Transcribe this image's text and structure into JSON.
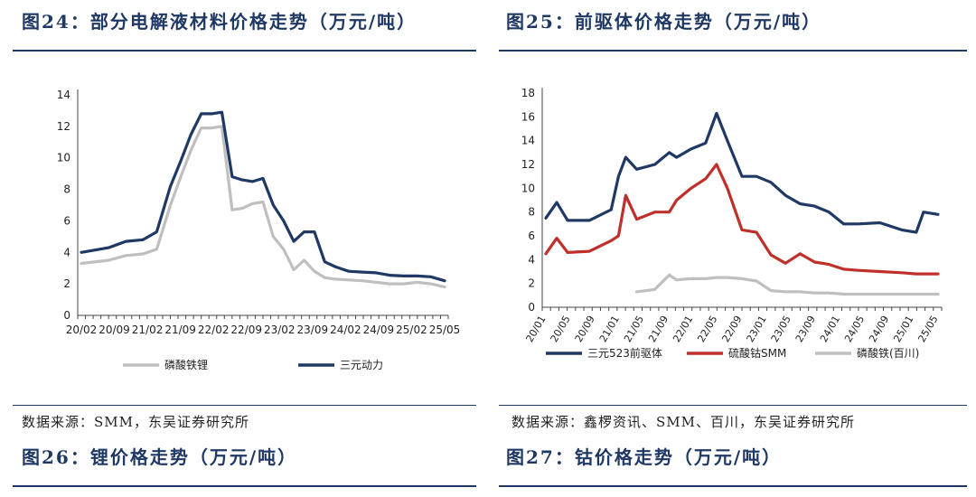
{
  "left_top": {
    "title": "图24：部分电解液材料价格走势（万元/吨）",
    "source": "数据来源：SMM，东吴证券研究所"
  },
  "right_top": {
    "title": "图25：前驱体价格走势（万元/吨）",
    "source": "数据来源：鑫椤资讯、SMM、百川，东吴证券研究所"
  },
  "left_bottom": {
    "title": "图26：锂价格走势（万元/吨）"
  },
  "right_bottom": {
    "title": "图27：钴价格走势（万元/吨）"
  },
  "colors": {
    "navy": "#1f3864",
    "gray": "#bfbfbf",
    "red": "#c0302b",
    "blue": "#2f4f80"
  },
  "chart_data": [
    {
      "type": "line",
      "title": "图24：部分电解液材料价格走势（万元/吨）",
      "ylim": [
        0,
        14
      ],
      "yticks": [
        0,
        2,
        4,
        6,
        8,
        10,
        12,
        14
      ],
      "x_tick_labels": [
        "20/02",
        "20/09",
        "21/02",
        "21/09",
        "22/02",
        "22/09",
        "23/02",
        "23/09",
        "24/02",
        "24/09",
        "25/02",
        "25/05"
      ],
      "x": [
        2020.1,
        2020.5,
        2020.75,
        2021.0,
        2021.2,
        2021.4,
        2021.55,
        2021.7,
        2021.85,
        2022.0,
        2022.15,
        2022.3,
        2022.45,
        2022.6,
        2022.75,
        2022.9,
        2023.05,
        2023.2,
        2023.35,
        2023.5,
        2023.65,
        2023.8,
        2024.0,
        2024.2,
        2024.4,
        2024.6,
        2024.8,
        2025.0,
        2025.2,
        2025.4
      ],
      "series": [
        {
          "name": "磷酸铁锂",
          "color": "#bfbfbf",
          "values": [
            3.3,
            3.5,
            3.8,
            3.9,
            4.2,
            7.0,
            8.8,
            10.5,
            11.9,
            11.9,
            12.0,
            6.7,
            6.8,
            7.1,
            7.2,
            5.0,
            4.2,
            2.9,
            3.5,
            2.8,
            2.4,
            2.3,
            2.25,
            2.2,
            2.1,
            2.0,
            2.0,
            2.1,
            2.0,
            1.8
          ]
        },
        {
          "name": "三元动力",
          "color": "#1f3864",
          "values": [
            4.0,
            4.3,
            4.7,
            4.8,
            5.3,
            8.2,
            9.8,
            11.5,
            12.8,
            12.8,
            12.9,
            8.8,
            8.6,
            8.5,
            8.7,
            7.0,
            6.0,
            4.7,
            5.3,
            5.3,
            3.4,
            3.1,
            2.8,
            2.75,
            2.7,
            2.55,
            2.5,
            2.5,
            2.45,
            2.2
          ]
        }
      ]
    },
    {
      "type": "line",
      "title": "图25：前驱体价格走势（万元/吨）",
      "ylim": [
        0,
        18
      ],
      "yticks": [
        0,
        2,
        4,
        6,
        8,
        10,
        12,
        14,
        16,
        18
      ],
      "x_tick_labels": [
        "20/01",
        "20/05",
        "20/09",
        "21/01",
        "21/05",
        "21/09",
        "22/01",
        "22/05",
        "22/09",
        "23/01",
        "23/05",
        "23/09",
        "24/01",
        "24/05",
        "24/09",
        "25/01",
        "25/05"
      ],
      "x": [
        2020.0,
        2020.15,
        2020.3,
        2020.6,
        2020.9,
        2021.0,
        2021.1,
        2021.25,
        2021.5,
        2021.7,
        2021.8,
        2022.0,
        2022.2,
        2022.35,
        2022.5,
        2022.7,
        2022.9,
        2023.1,
        2023.3,
        2023.5,
        2023.7,
        2023.9,
        2024.1,
        2024.3,
        2024.6,
        2024.9,
        2025.1,
        2025.2,
        2025.4
      ],
      "series": [
        {
          "name": "三元523前驱体",
          "color": "#1f3864",
          "values": [
            7.5,
            8.8,
            7.3,
            7.3,
            8.2,
            11.0,
            12.6,
            11.6,
            12.0,
            13.0,
            12.6,
            13.3,
            13.8,
            16.3,
            14.0,
            11.0,
            11.0,
            10.5,
            9.4,
            8.7,
            8.5,
            8.0,
            7.0,
            7.0,
            7.1,
            6.5,
            6.3,
            8.0,
            7.8
          ]
        },
        {
          "name": "硫酸钴SMM",
          "color": "#c0302b",
          "values": [
            4.5,
            5.8,
            4.6,
            4.7,
            5.6,
            6.0,
            9.4,
            7.4,
            8.0,
            8.0,
            9.0,
            10.0,
            10.8,
            12.0,
            10.0,
            6.5,
            6.3,
            4.4,
            3.7,
            4.5,
            3.8,
            3.6,
            3.2,
            3.1,
            3.0,
            2.9,
            2.8,
            2.8,
            2.8
          ]
        },
        {
          "name": "磷酸铁(百川)",
          "color": "#bfbfbf",
          "start_index": 7,
          "values": [
            null,
            null,
            null,
            null,
            null,
            null,
            null,
            1.3,
            1.5,
            2.7,
            2.3,
            2.4,
            2.4,
            2.5,
            2.5,
            2.4,
            2.2,
            1.4,
            1.3,
            1.3,
            1.2,
            1.2,
            1.1,
            1.1,
            1.1,
            1.1,
            1.1,
            1.1,
            1.1
          ]
        }
      ]
    }
  ]
}
